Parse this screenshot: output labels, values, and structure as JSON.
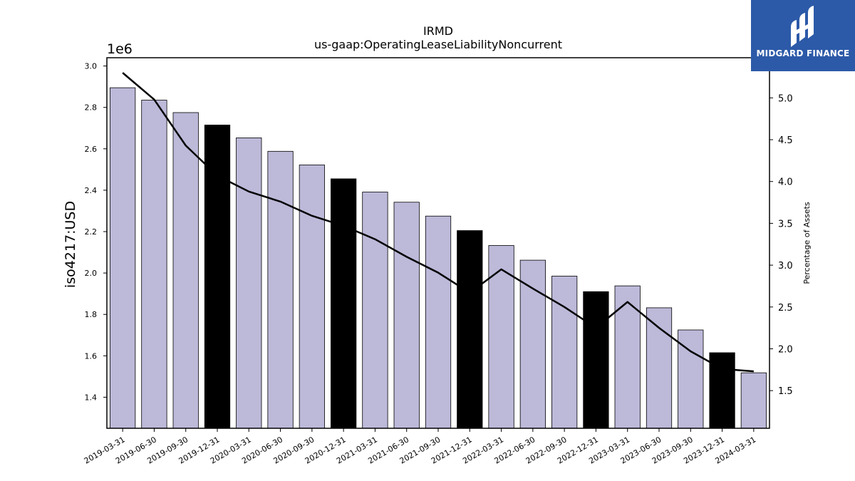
{
  "chart_data": {
    "type": "bar",
    "title": "IRMD",
    "subtitle": "us-gaap:OperatingLeaseLiabilityNoncurrent",
    "ylabel": "iso4217:USD",
    "y_offset_label": "1e6",
    "y2label": "Percentage of Assets",
    "ylim": [
      1250000,
      3040000
    ],
    "y2lim": [
      1.05,
      5.48
    ],
    "y_ticks": [
      "1.4",
      "1.6",
      "1.8",
      "2.0",
      "2.2",
      "2.4",
      "2.6",
      "2.8",
      "3.0"
    ],
    "y2_ticks": [
      "1.5",
      "2.0",
      "2.5",
      "3.0",
      "3.5",
      "4.0",
      "4.5",
      "5.0"
    ],
    "categories": [
      "2019-03-31",
      "2019-06-30",
      "2019-09-30",
      "2019-12-31",
      "2020-03-31",
      "2020-06-30",
      "2020-09-30",
      "2020-12-31",
      "2021-03-31",
      "2021-06-30",
      "2021-09-30",
      "2021-12-31",
      "2022-03-31",
      "2022-06-30",
      "2022-09-30",
      "2022-12-31",
      "2023-03-31",
      "2023-06-30",
      "2023-09-30",
      "2023-12-31",
      "2024-03-31"
    ],
    "series": [
      {
        "type": "bar",
        "values": [
          2895000,
          2835000,
          2775000,
          2715000,
          2653000,
          2588000,
          2522000,
          2455000,
          2391000,
          2342000,
          2275000,
          2205000,
          2133000,
          2062000,
          1985000,
          1910000,
          1938000,
          1832000,
          1725000,
          1615000,
          1518000
        ],
        "highlight": [
          false,
          false,
          false,
          true,
          false,
          false,
          false,
          true,
          false,
          false,
          false,
          true,
          false,
          false,
          false,
          true,
          false,
          false,
          false,
          true,
          false
        ]
      },
      {
        "type": "line",
        "axis": "right",
        "values": [
          5.3,
          4.98,
          4.43,
          4.07,
          3.88,
          3.76,
          3.59,
          3.47,
          3.31,
          3.1,
          2.91,
          2.67,
          2.95,
          2.72,
          2.5,
          2.25,
          2.56,
          2.25,
          1.97,
          1.76,
          1.73
        ]
      }
    ],
    "colors": {
      "bar": "#bcb9d9",
      "bar_highlight": "#000000",
      "line": "#000000"
    }
  },
  "logo": {
    "text": "MIDGARD FINANCE",
    "bg": "#2c5aa8"
  }
}
